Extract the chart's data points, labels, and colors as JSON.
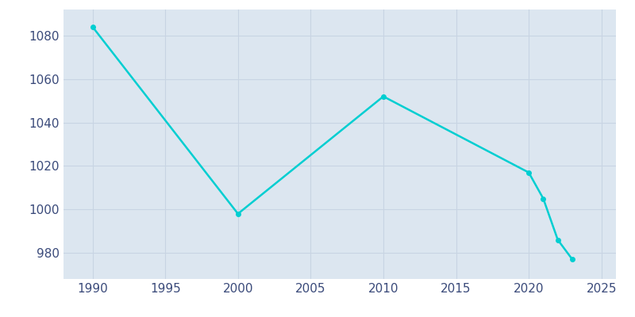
{
  "years": [
    1990,
    2000,
    2010,
    2020,
    2021,
    2022,
    2023
  ],
  "population": [
    1084,
    998,
    1052,
    1017,
    1005,
    986,
    977
  ],
  "line_color": "#00CED1",
  "marker": "o",
  "marker_size": 4,
  "bg_color": "#dce6f0",
  "fig_bg_color": "#ffffff",
  "grid_color": "#c8d4e3",
  "xlim": [
    1988,
    2026
  ],
  "ylim": [
    968,
    1092
  ],
  "xticks": [
    1990,
    1995,
    2000,
    2005,
    2010,
    2015,
    2020,
    2025
  ],
  "yticks": [
    980,
    1000,
    1020,
    1040,
    1060,
    1080
  ],
  "tick_color": "#3a4a7a",
  "tick_fontsize": 11,
  "linewidth": 1.8
}
